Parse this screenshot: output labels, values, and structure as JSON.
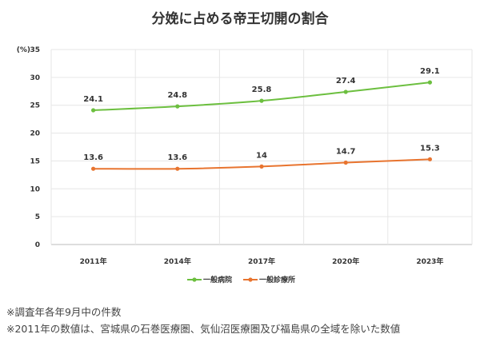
{
  "title": "分娩に占める帝王切開の割合",
  "notes": [
    "※調査年各年9月中の件数",
    "※2011年の数値は、宮城県の石巻医療圏、気仙沼医療圏及び福島県の全域を除いた数値"
  ],
  "chart_data": {
    "type": "line",
    "title": "分娩に占める帝王切開の割合",
    "unit_label": "(%)",
    "categories": [
      "2011年",
      "2014年",
      "2017年",
      "2020年",
      "2023年"
    ],
    "ylim": [
      0,
      35
    ],
    "yticks": [
      0,
      5,
      10,
      15,
      20,
      25,
      30,
      35
    ],
    "grid": true,
    "legend_position": "bottom",
    "series": [
      {
        "name": "一般病院",
        "color": "#6cbf3f",
        "values": [
          24.1,
          24.8,
          25.8,
          27.4,
          29.1
        ],
        "labels": [
          "24.1",
          "24.8",
          "25.8",
          "27.4",
          "29.1"
        ]
      },
      {
        "name": "一般診療所",
        "color": "#e8742f",
        "values": [
          13.6,
          13.6,
          14.0,
          14.7,
          15.3
        ],
        "labels": [
          "13.6",
          "13.6",
          "14",
          "14.7",
          "15.3"
        ]
      }
    ]
  }
}
